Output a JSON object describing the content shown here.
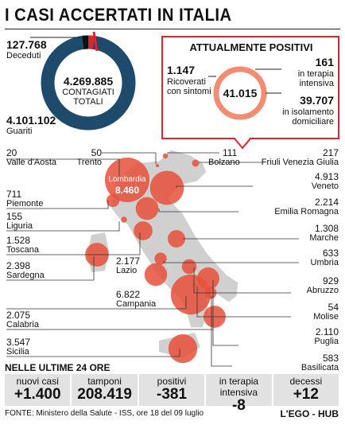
{
  "title": "I CASI ACCERTATI IN ITALIA",
  "totals": {
    "deceduti_value": "127.768",
    "deceduti_label": "Deceduti",
    "total_value": "4.269.885",
    "total_label_1": "CONTAGIATI",
    "total_label_2": "TOTALI",
    "guariti_value": "4.101.102",
    "guariti_label": "Guariti"
  },
  "positivi": {
    "title": "ATTUALMENTE POSITIVI",
    "center_value": "41.015",
    "ricoverati_value": "1.147",
    "ricoverati_label_1": "Ricoverati",
    "ricoverati_label_2": "con sintomi",
    "intensiva_value": "161",
    "intensiva_label_1": "in terapia",
    "intensiva_label_2": "intensiva",
    "isolamento_value": "39.707",
    "isolamento_label_1": "in isolamento",
    "isolamento_label_2": "domiciliare"
  },
  "colors": {
    "donut_blue": "#1e4a6b",
    "donut_red": "#d9262c",
    "accent_red": "#e8212e",
    "bubble": "#e8503a",
    "bubble_light": "#f28c73",
    "map": "#d0d0d0",
    "strip": "#e2e2e2"
  },
  "chart_data": {
    "type": "bubble-map",
    "regions": [
      {
        "name": "Valle d'Aosta",
        "value": 20
      },
      {
        "name": "Trento",
        "value": 50
      },
      {
        "name": "Bolzano",
        "value": 111
      },
      {
        "name": "Friuli Venezia Giulia",
        "value": 217
      },
      {
        "name": "Veneto",
        "value": 4913
      },
      {
        "name": "Lombardia",
        "value": 8460
      },
      {
        "name": "Piemonte",
        "value": 711
      },
      {
        "name": "Emilia Romagna",
        "value": 2214
      },
      {
        "name": "Liguria",
        "value": 155
      },
      {
        "name": "Marche",
        "value": 1308
      },
      {
        "name": "Toscana",
        "value": 1528
      },
      {
        "name": "Umbria",
        "value": 633
      },
      {
        "name": "Lazio",
        "value": 2177
      },
      {
        "name": "Abruzzo",
        "value": 929
      },
      {
        "name": "Sardegna",
        "value": 2398
      },
      {
        "name": "Molise",
        "value": 54
      },
      {
        "name": "Campania",
        "value": 6822
      },
      {
        "name": "Puglia",
        "value": 2110
      },
      {
        "name": "Calabria",
        "value": 2075
      },
      {
        "name": "Basilicata",
        "value": 583
      },
      {
        "name": "Sicilia",
        "value": 3547
      }
    ],
    "region_labels": {
      "valle": "20",
      "valle_name": "Valle d'Aosta",
      "trento": "50",
      "trento_name": "Trento",
      "bolzano": "111",
      "bolzano_name": "Bolzano",
      "friuli": "217",
      "friuli_name": "Friuli Venezia Giulia",
      "veneto": "4.913",
      "veneto_name": "Veneto",
      "lombardia": "8.460",
      "lombardia_name": "Lombardia",
      "piemonte": "711",
      "piemonte_name": "Piemonte",
      "emilia": "2.214",
      "emilia_name": "Emilia Romagna",
      "liguria": "155",
      "liguria_name": "Liguria",
      "marche": "1.308",
      "marche_name": "Marche",
      "toscana": "1.528",
      "toscana_name": "Toscana",
      "umbria": "633",
      "umbria_name": "Umbria",
      "lazio": "2.177",
      "lazio_name": "Lazio",
      "abruzzo": "929",
      "abruzzo_name": "Abruzzo",
      "sardegna": "2.398",
      "sardegna_name": "Sardegna",
      "molise": "54",
      "molise_name": "Molise",
      "campania": "6.822",
      "campania_name": "Campania",
      "puglia": "2.110",
      "puglia_name": "Puglia",
      "calabria": "2.075",
      "calabria_name": "Calabria",
      "basilicata": "583",
      "basilicata_name": "Basilicata",
      "sicilia": "3.547",
      "sicilia_name": "Sicilia"
    }
  },
  "ultime": {
    "heading": "NELLE ULTIME 24 ORE",
    "items": [
      {
        "label": "nuovi casi",
        "value": "+1.400"
      },
      {
        "label": "tamponi",
        "value": "208.419"
      },
      {
        "label": "positivi",
        "value": "-381"
      },
      {
        "label": "in terapia intensiva",
        "value": "-8"
      },
      {
        "label": "decessi",
        "value": "+12"
      }
    ]
  },
  "footer": {
    "source": "FONTE: Ministero della Salute - ISS, ore 18 del 09 luglio",
    "brand": "L'EGO - HUB"
  }
}
